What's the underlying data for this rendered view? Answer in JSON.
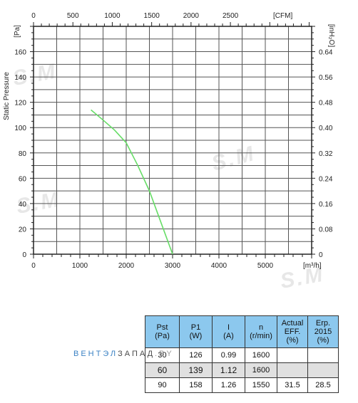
{
  "chart_data": {
    "type": "line",
    "xlabel_bottom_unit": "[m³/h]",
    "xlabel_top_unit": "[CFM]",
    "ylabel_left": "Static Pressure",
    "ylabel_left_unit": "[Pa]",
    "ylabel_right_unit": "[inH₂O]",
    "xlim": [
      0,
      6000
    ],
    "ylim": [
      0,
      180
    ],
    "grid": true,
    "x_ticks_bottom": [
      0,
      1000,
      2000,
      3000,
      4000,
      5000
    ],
    "x_ticks_top_cfm": [
      0,
      500,
      1000,
      1500,
      2000,
      2500
    ],
    "y_ticks_left": [
      0,
      20,
      40,
      60,
      80,
      100,
      120,
      140,
      160
    ],
    "y_ticks_right": [
      "0",
      "0.08",
      "0.16",
      "0.24",
      "0.32",
      "0.40",
      "0.48",
      "0.56",
      "0.64"
    ],
    "series": [
      {
        "color": "#66dd66",
        "x": [
          1240,
          1500,
          1750,
          2000,
          2250,
          2500,
          2750,
          3000
        ],
        "y": [
          114,
          106,
          98,
          88,
          70,
          50,
          25,
          0
        ]
      }
    ]
  },
  "watermark": "S.M",
  "table": {
    "headers": [
      [
        "Pst",
        "(Pa)"
      ],
      [
        "P1",
        "(W)"
      ],
      [
        "I",
        "(A)"
      ],
      [
        "n",
        "(r/min)"
      ],
      [
        "Actual",
        "EFF.",
        "(%)"
      ],
      [
        "Erp.",
        "2015",
        "(%)"
      ]
    ],
    "rows": [
      [
        "30",
        "126",
        "0.99",
        "1600",
        "",
        ""
      ],
      [
        "60",
        "139",
        "1.12",
        "1600",
        "",
        ""
      ],
      [
        "90",
        "158",
        "1.26",
        "1550",
        "31.5",
        "28.5"
      ]
    ]
  },
  "brand": {
    "part1": "ВЕНТЭЛ",
    "part2": "ЗАПАД",
    "part3": ".BY"
  }
}
